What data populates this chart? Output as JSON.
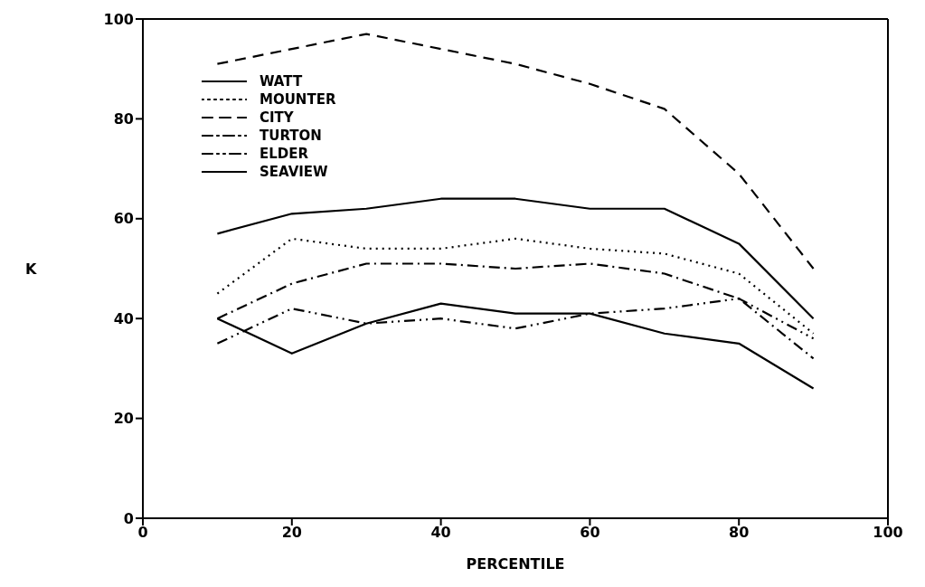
{
  "chart_data": {
    "type": "line",
    "xlabel": "PERCENTILE",
    "ylabel": "K",
    "x": [
      10,
      20,
      30,
      40,
      50,
      60,
      70,
      80,
      90
    ],
    "xlim": [
      0,
      100
    ],
    "xticks": [
      0,
      20,
      40,
      60,
      80,
      100
    ],
    "ylim": [
      0,
      100
    ],
    "yticks": [
      0,
      20,
      40,
      60,
      80,
      100
    ],
    "grid": false,
    "legend": "top left",
    "marker": "none",
    "series": [
      {
        "name": "WATT",
        "color": "#000000",
        "line_style": "solid",
        "values": [
          57,
          61,
          62,
          64,
          64,
          62,
          62,
          55,
          40
        ]
      },
      {
        "name": "MOUNTER",
        "color": "#000000",
        "line_style": "dotted",
        "values": [
          45,
          56,
          54,
          54,
          56,
          54,
          53,
          49,
          37
        ]
      },
      {
        "name": "CITY",
        "color": "#000000",
        "line_style": "dashed",
        "values": [
          91,
          94,
          97,
          94,
          91,
          87,
          82,
          69,
          50
        ]
      },
      {
        "name": "TURTON",
        "color": "#000000",
        "line_style": "dashdot",
        "values": [
          40,
          47,
          51,
          51,
          50,
          51,
          49,
          44,
          32
        ]
      },
      {
        "name": "ELDER",
        "color": "#000000",
        "line_style": "dashdotdot",
        "values": [
          35,
          42,
          39,
          40,
          38,
          41,
          42,
          44,
          36
        ]
      },
      {
        "name": "SEAVIEW",
        "color": "#000000",
        "line_style": "solid",
        "values": [
          40,
          33,
          39,
          43,
          41,
          41,
          37,
          35,
          26
        ]
      }
    ]
  }
}
